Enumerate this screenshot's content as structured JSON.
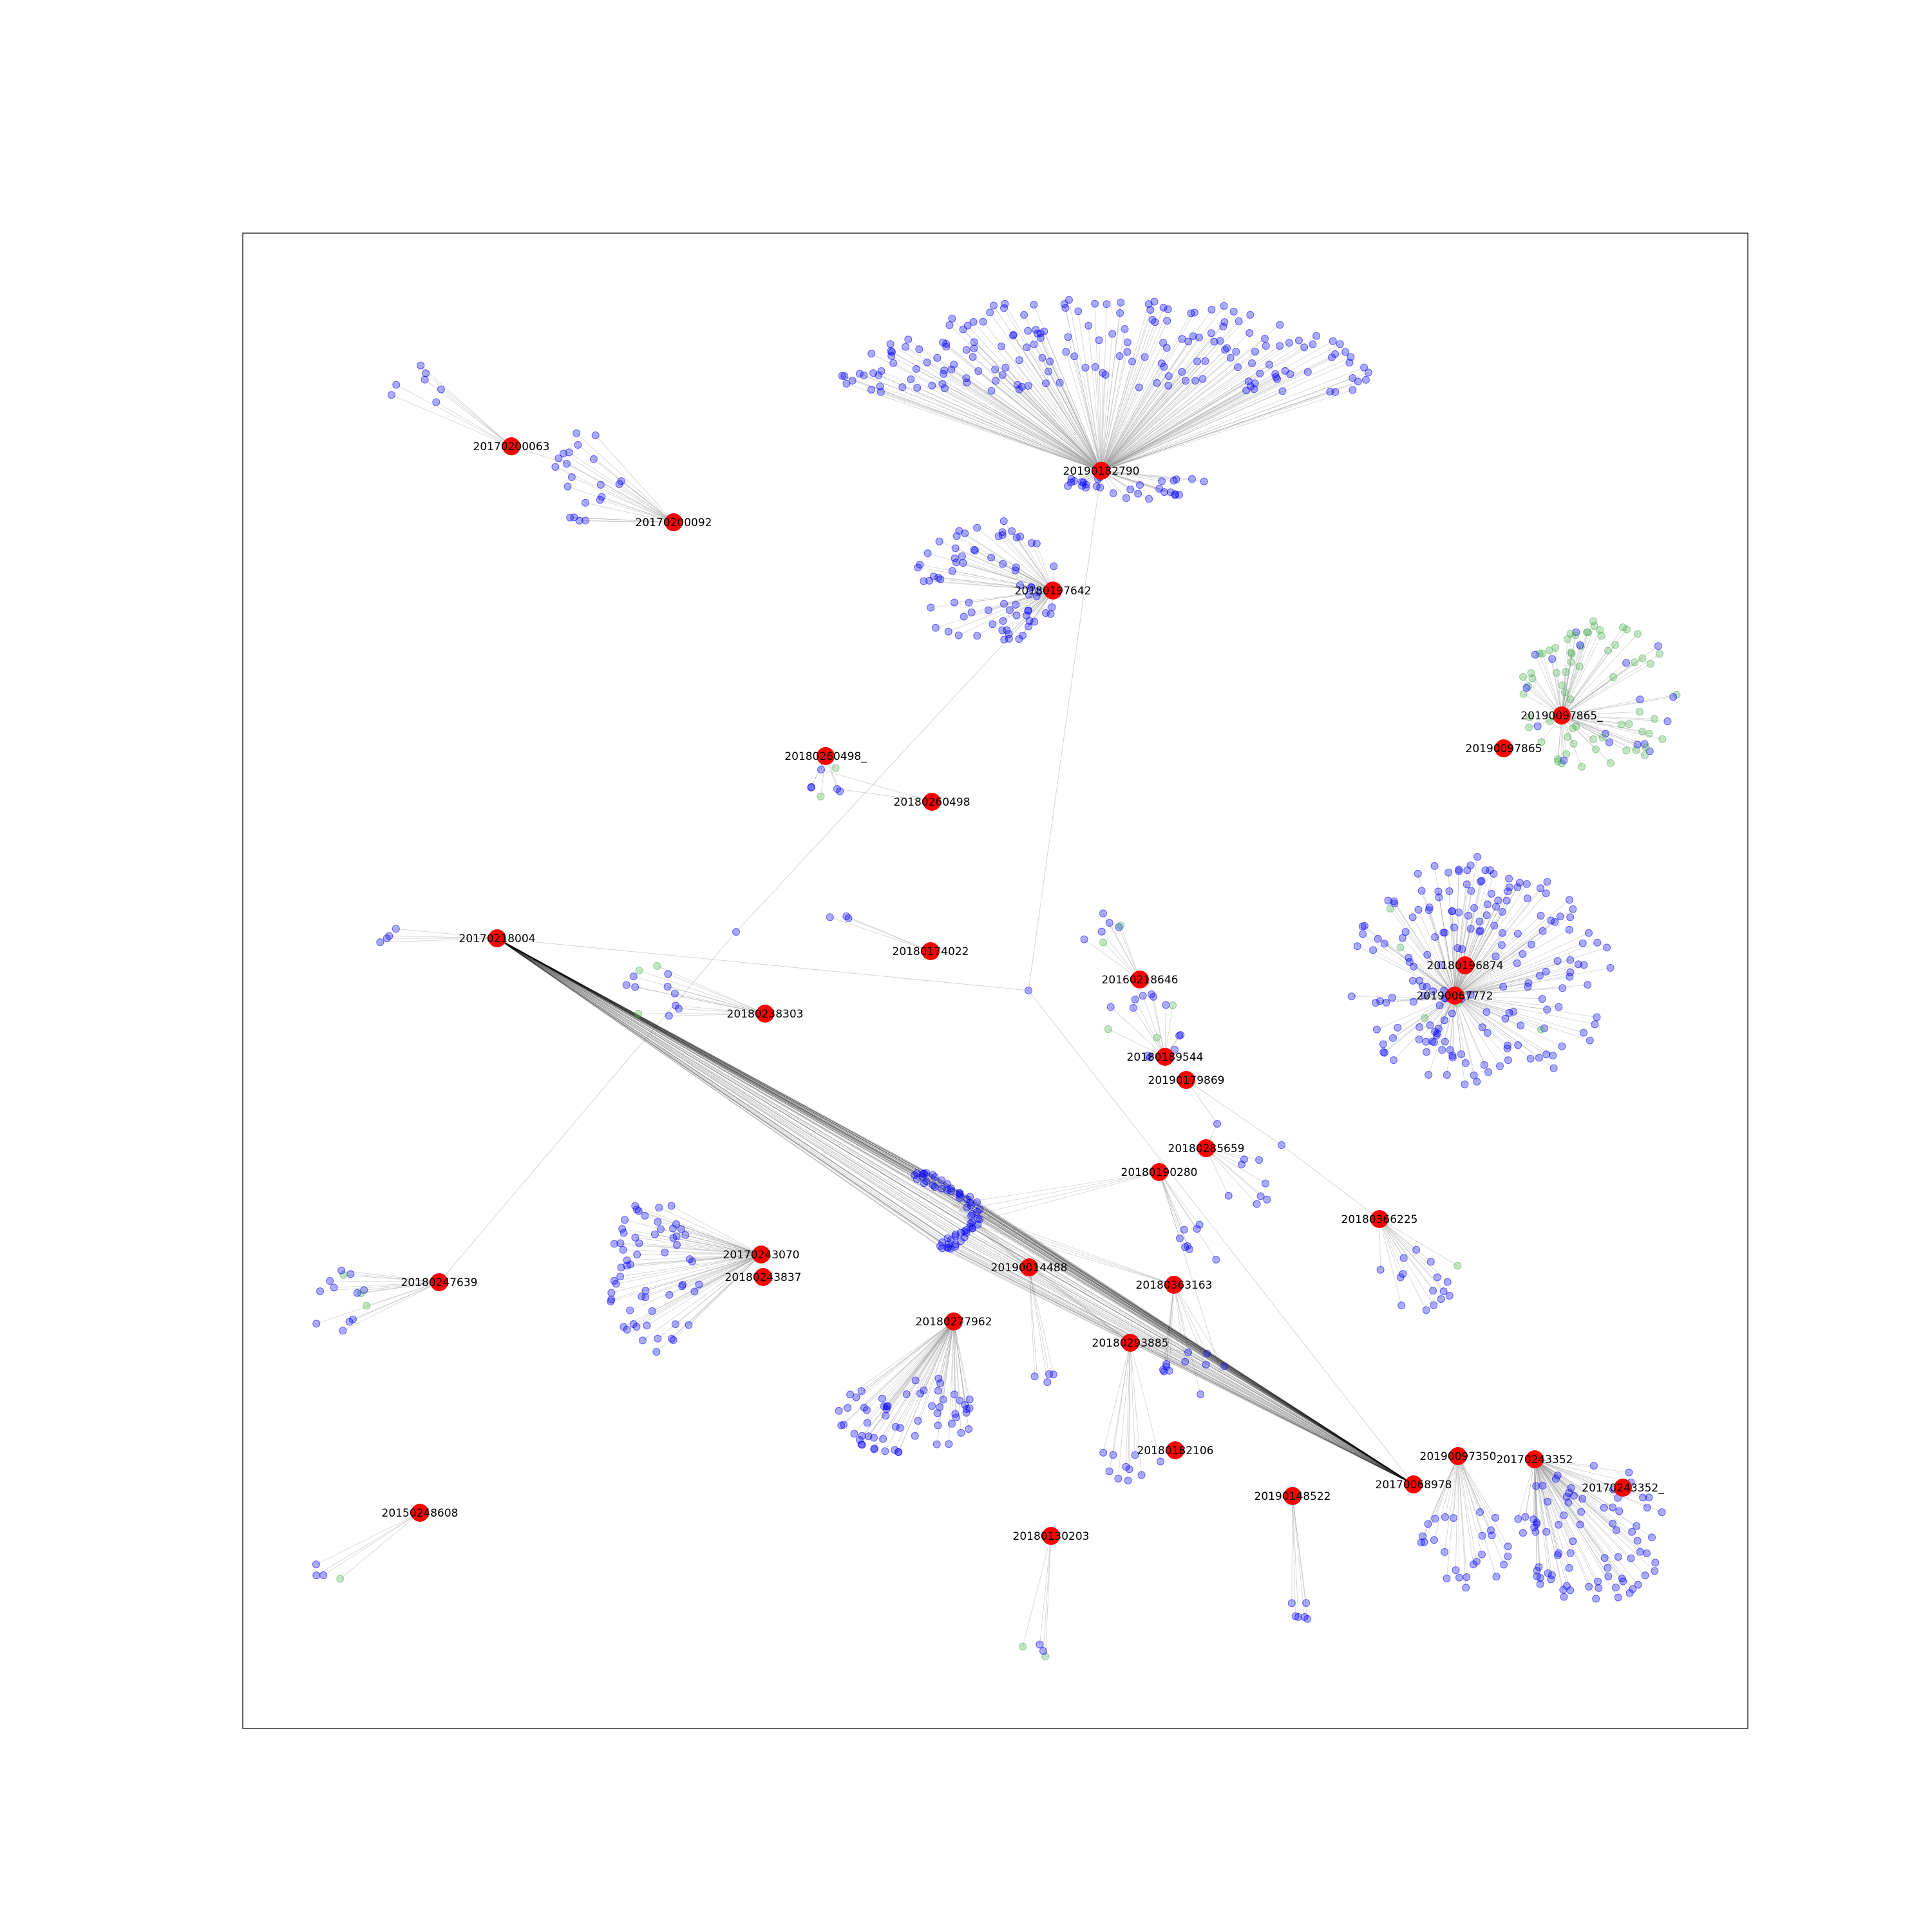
{
  "colors": {
    "hub": "#ff0000",
    "leaf_blue": "#0000ff",
    "leaf_green": "#4caf50",
    "edge": "#999999",
    "frame": "#000000"
  },
  "hubs": [
    {
      "id": "h1",
      "label": "20170200063"
    },
    {
      "id": "h2",
      "label": "20170200092"
    },
    {
      "id": "h3",
      "label": "20190182790"
    },
    {
      "id": "h4",
      "label": "20180197642"
    },
    {
      "id": "h5",
      "label": "20190097865_"
    },
    {
      "id": "h6",
      "label": "20190097865"
    },
    {
      "id": "h7",
      "label": "20180260498_"
    },
    {
      "id": "h8",
      "label": "20180260498"
    },
    {
      "id": "h9",
      "label": "20170218004"
    },
    {
      "id": "h10",
      "label": "20180174022"
    },
    {
      "id": "h11",
      "label": "20180238303"
    },
    {
      "id": "h12",
      "label": "20160218646"
    },
    {
      "id": "h13",
      "label": "20180196874"
    },
    {
      "id": "h14",
      "label": "20190067772"
    },
    {
      "id": "h15",
      "label": "20180189544"
    },
    {
      "id": "h16",
      "label": "20190179869"
    },
    {
      "id": "h17",
      "label": "20180285659"
    },
    {
      "id": "h18",
      "label": "20180190280"
    },
    {
      "id": "h19",
      "label": "20180366225"
    },
    {
      "id": "h20",
      "label": "20170243070"
    },
    {
      "id": "h21",
      "label": "20180243837"
    },
    {
      "id": "h22",
      "label": "20180247639"
    },
    {
      "id": "h23",
      "label": "20190014488"
    },
    {
      "id": "h24",
      "label": "20180363163"
    },
    {
      "id": "h25",
      "label": "20180277962"
    },
    {
      "id": "h26",
      "label": "20180293885"
    },
    {
      "id": "h27",
      "label": "20180182106"
    },
    {
      "id": "h28",
      "label": "20190097350"
    },
    {
      "id": "h29",
      "label": "20170243352"
    },
    {
      "id": "h30",
      "label": "20170068978"
    },
    {
      "id": "h31",
      "label": "20170243352_"
    },
    {
      "id": "h32",
      "label": "20190148522"
    },
    {
      "id": "h33",
      "label": "20150248608"
    },
    {
      "id": "h34",
      "label": "20180130203"
    }
  ]
}
